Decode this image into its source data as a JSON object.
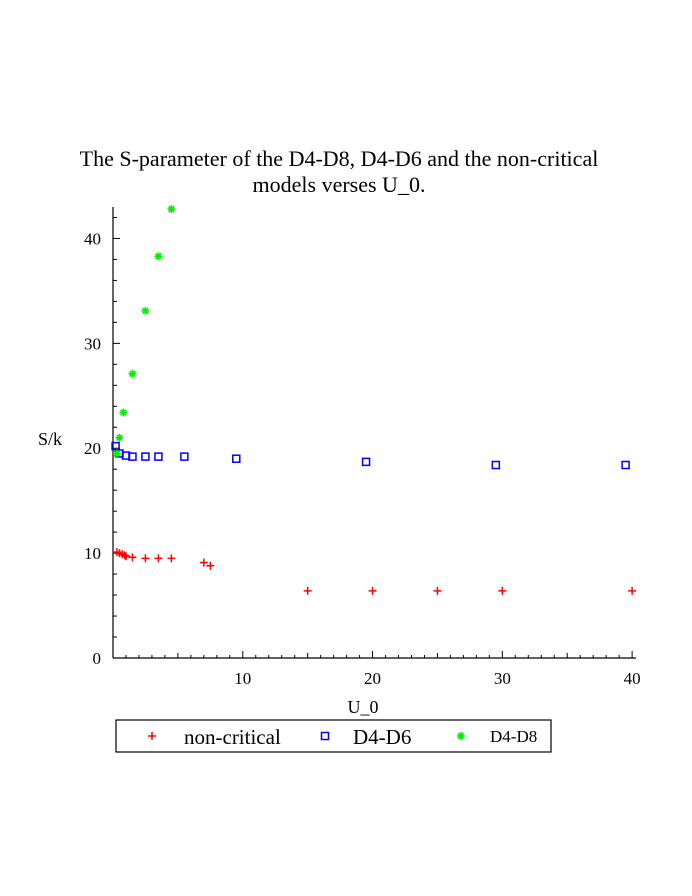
{
  "chart_data": {
    "type": "scatter",
    "title": "The S-parameter of the D4-D8, D4-D6 and the non-critical",
    "title_line2": "models verses U_0.",
    "xlabel": "U_0",
    "ylabel": "S/k",
    "xlim": [
      0,
      40.3
    ],
    "ylim": [
      0,
      43
    ],
    "x_ticks": [
      10,
      20,
      30,
      40
    ],
    "y_ticks": [
      0,
      10,
      20,
      30,
      40
    ],
    "grid": false,
    "legend_position": "bottom",
    "series": [
      {
        "name": "non-critical",
        "marker": "plus",
        "color": "#ff0000",
        "x": [
          0.3,
          0.5,
          0.7,
          0.9,
          1.0,
          1.5,
          2.5,
          3.5,
          4.5,
          7.0,
          7.5,
          15,
          20,
          25,
          30,
          40
        ],
        "y": [
          10.1,
          10.0,
          9.9,
          9.8,
          9.7,
          9.6,
          9.5,
          9.5,
          9.5,
          9.1,
          8.8,
          6.4,
          6.4,
          6.4,
          6.4,
          6.4
        ]
      },
      {
        "name": "D4-D6",
        "marker": "square",
        "color": "#0000ff",
        "x": [
          0.2,
          0.5,
          1.0,
          1.5,
          2.5,
          3.5,
          5.5,
          9.5,
          19.5,
          29.5,
          39.5
        ],
        "y": [
          20.2,
          19.5,
          19.3,
          19.2,
          19.2,
          19.2,
          19.2,
          19.0,
          18.7,
          18.4,
          18.4
        ]
      },
      {
        "name": "D4-D8",
        "marker": "star",
        "color": "#00ee00",
        "x": [
          0.3,
          0.5,
          0.8,
          1.5,
          2.5,
          3.5,
          4.5
        ],
        "y": [
          19.5,
          21.0,
          23.4,
          27.1,
          33.1,
          38.3,
          42.8
        ]
      }
    ]
  }
}
